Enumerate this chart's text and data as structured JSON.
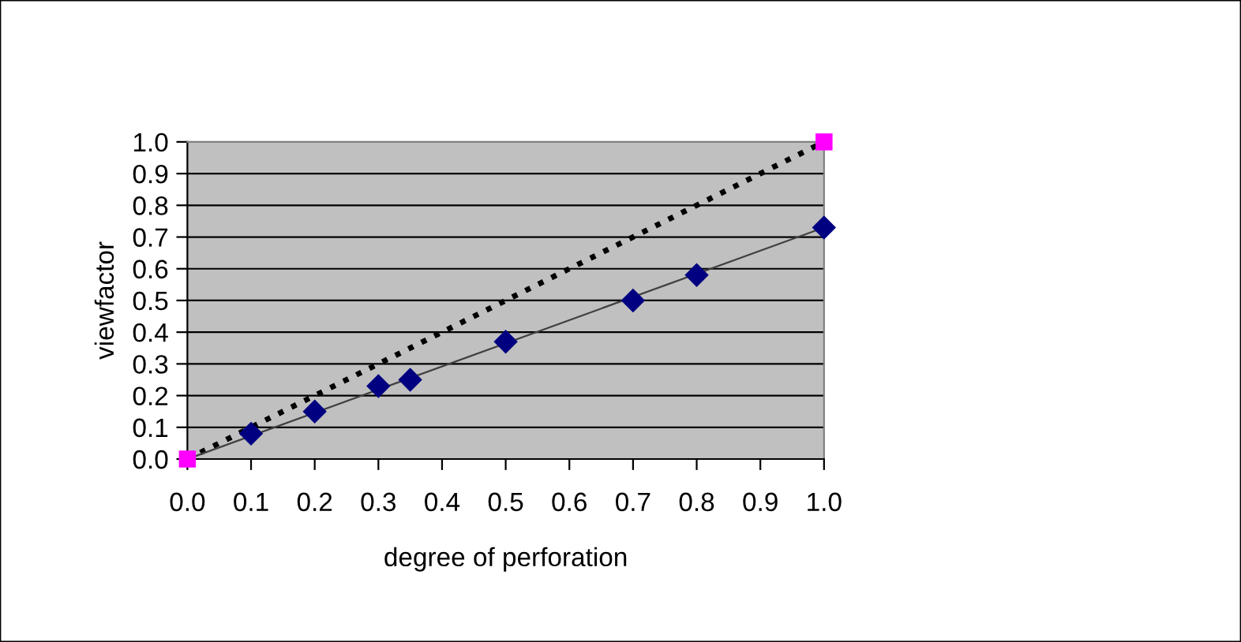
{
  "chart_data": {
    "type": "scatter",
    "xlabel": "degree of perforation",
    "ylabel": "viewfactor",
    "xlim": [
      0,
      1
    ],
    "ylim": [
      0,
      1
    ],
    "xticks": [
      {
        "value": 0,
        "label": "0.0"
      },
      0.1,
      0.2,
      0.3,
      0.4,
      0.5,
      0.6,
      0.7,
      0.8,
      0.9,
      {
        "value": 1,
        "label": "1.0"
      }
    ],
    "yticks": [
      {
        "value": 0,
        "label": "0.0"
      },
      0.1,
      0.2,
      0.3,
      0.4,
      0.5,
      0.6,
      0.7,
      0.8,
      0.9,
      {
        "value": 1,
        "label": "1.0"
      }
    ],
    "grid": "y",
    "legend": false,
    "series": [
      {
        "type": "line",
        "color": "#000000",
        "x": [
          0,
          1
        ],
        "values": [
          0,
          1
        ],
        "line_style": "dotted",
        "marker": "none"
      },
      {
        "type": "line",
        "color": "#404040",
        "x": [
          0,
          1
        ],
        "values": [
          0,
          0.73
        ],
        "line_style": "solid",
        "marker": "none"
      },
      {
        "color": "#000080",
        "x": [
          0.1,
          0.2,
          0.3,
          0.35,
          0.5,
          0.7,
          0.8,
          1.0
        ],
        "values": [
          0.08,
          0.15,
          0.23,
          0.25,
          0.37,
          0.5,
          0.58,
          0.73
        ],
        "marker": "diamond"
      },
      {
        "color": "#ff00ff",
        "x": [
          0,
          1
        ],
        "values": [
          0,
          1
        ],
        "marker": "square"
      }
    ]
  }
}
